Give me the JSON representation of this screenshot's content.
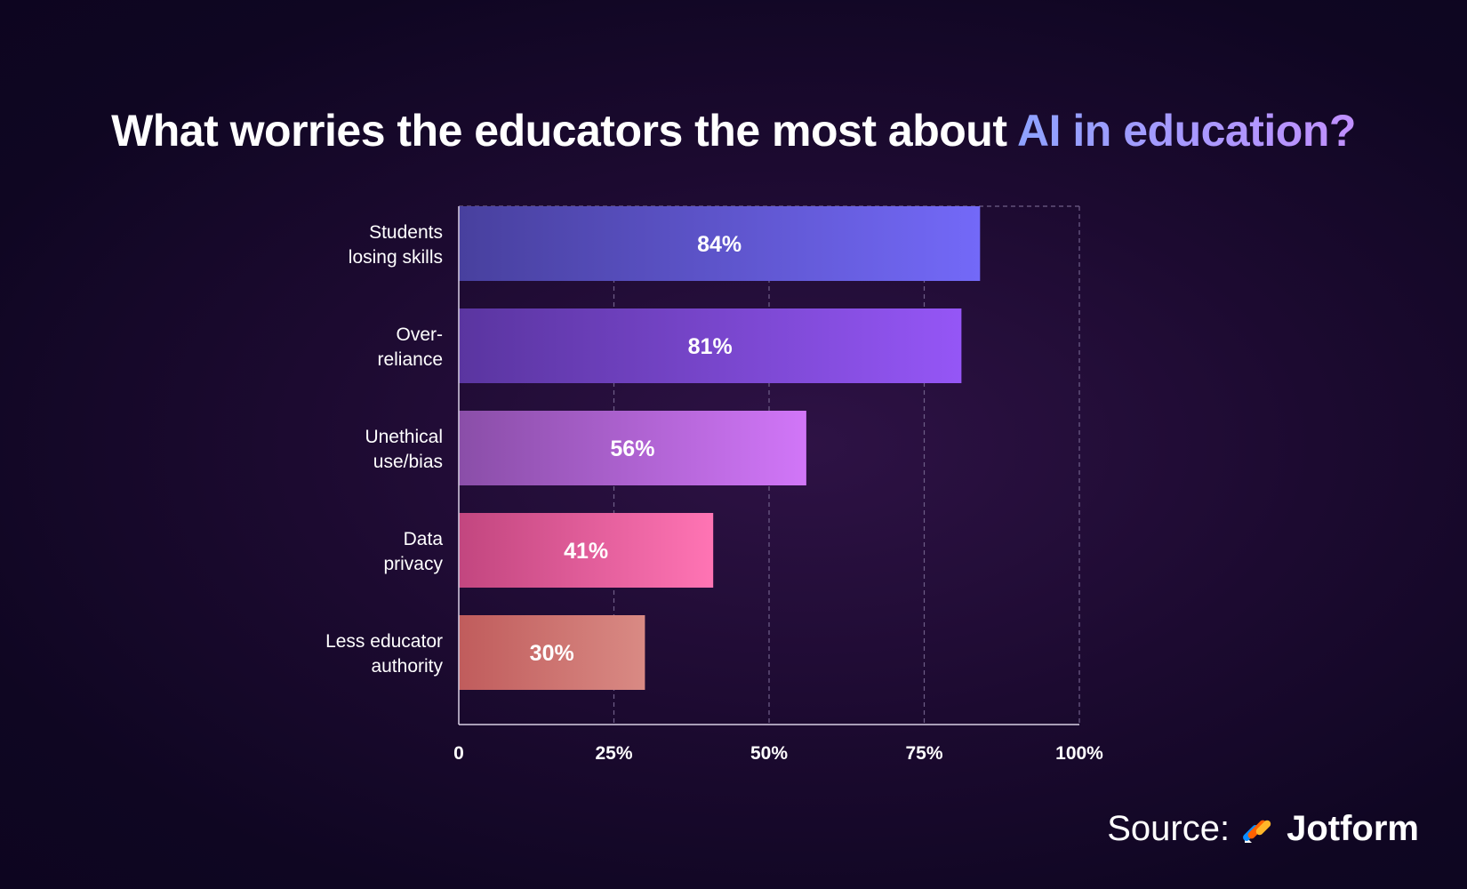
{
  "title": {
    "prefix": "What worries the educators the most about ",
    "highlight": "AI in education?"
  },
  "chart_data": {
    "type": "bar",
    "orientation": "horizontal",
    "categories": [
      [
        "Students",
        "losing skills"
      ],
      [
        "Over-",
        "reliance"
      ],
      [
        "Unethical",
        "use/bias"
      ],
      [
        "Data",
        "privacy"
      ],
      [
        "Less educator",
        "authority"
      ]
    ],
    "values": [
      84,
      81,
      56,
      41,
      30
    ],
    "value_labels": [
      "84%",
      "81%",
      "56%",
      "41%",
      "30%"
    ],
    "x_ticks": [
      0,
      25,
      50,
      75,
      100
    ],
    "x_tick_labels": [
      "0",
      "25%",
      "50%",
      "75%",
      "100%"
    ],
    "xlim": [
      0,
      100
    ],
    "grid": "vertical dashed",
    "bar_colors": [
      [
        "#48409e",
        "#7369f8"
      ],
      [
        "#5a35a0",
        "#9556f6"
      ],
      [
        "#8a4ea8",
        "#d176f8"
      ],
      [
        "#c2467f",
        "#ff74b4"
      ],
      [
        "#c05c5c",
        "#d98a84"
      ]
    ]
  },
  "source": {
    "label": "Source:",
    "brand": "Jotform"
  }
}
